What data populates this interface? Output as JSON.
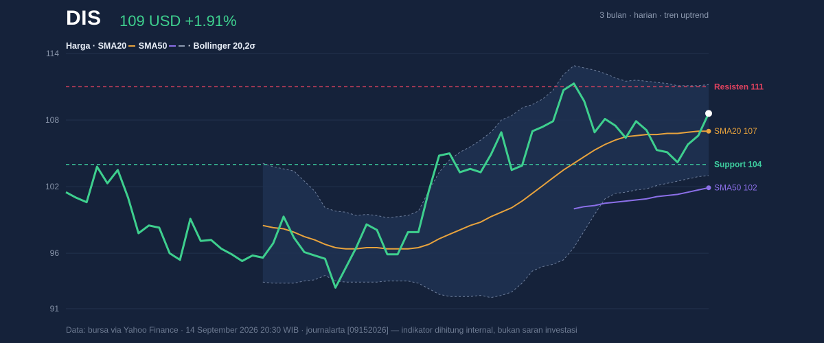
{
  "header": {
    "ticker": "DIS",
    "price_change": "109 USD +1.91%",
    "subtitle": "3 bulan · harian · tren uptrend"
  },
  "legend": {
    "price": "Harga ·",
    "sma20": "SMA20",
    "sma50": "SMA50",
    "bollinger": "· Bollinger 20,2σ"
  },
  "footer": "Data: bursa via Yahoo Finance · 14 September 2026 20:30 WIB · journalarta [09152026] — indikator dihitung internal, bukan saran investasi",
  "colors": {
    "background": "#15223a",
    "price": "#3ecf8e",
    "sma20": "#e8a33d",
    "sma50": "#8b6fe8",
    "resistance": "#e0425f",
    "support": "#3ecfa0",
    "band_fill": "#1e3152",
    "band_line": "#6f7f9c",
    "grid": "#22324d"
  },
  "chart_data": {
    "type": "line",
    "ylim": [
      91,
      114
    ],
    "yticks": [
      91,
      96,
      102,
      108,
      114
    ],
    "grid": true,
    "x": [
      1,
      2,
      3,
      4,
      5,
      6,
      7,
      8,
      9,
      10,
      11,
      12,
      13,
      14,
      15,
      16,
      17,
      18,
      19,
      20,
      21,
      22,
      23,
      24,
      25,
      26,
      27,
      28,
      29,
      30,
      31,
      32,
      33,
      34,
      35,
      36,
      37,
      38,
      39,
      40,
      41,
      42,
      43,
      44,
      45,
      46,
      47,
      48,
      49,
      50,
      51,
      52,
      53,
      54,
      55,
      56,
      57,
      58,
      59,
      60,
      61,
      62,
      63
    ],
    "price": [
      101.5,
      101.0,
      100.6,
      103.8,
      102.3,
      103.5,
      101.0,
      97.8,
      98.5,
      98.3,
      96.0,
      95.4,
      99.1,
      97.1,
      97.2,
      96.4,
      95.9,
      95.3,
      95.8,
      95.6,
      96.9,
      99.3,
      97.4,
      96.1,
      95.8,
      95.5,
      92.9,
      94.7,
      96.5,
      98.6,
      98.1,
      95.9,
      95.9,
      97.9,
      97.9,
      101.6,
      104.8,
      105.0,
      103.3,
      103.6,
      103.3,
      104.9,
      106.9,
      103.5,
      103.9,
      107.0,
      107.4,
      107.9,
      110.7,
      111.3,
      109.7,
      106.9,
      108.1,
      107.5,
      106.4,
      107.9,
      107.1,
      105.3,
      105.1,
      104.2,
      105.8,
      106.6,
      108.6
    ],
    "sma20": [
      null,
      null,
      null,
      null,
      null,
      null,
      null,
      null,
      null,
      null,
      null,
      null,
      null,
      null,
      null,
      null,
      null,
      null,
      null,
      98.5,
      98.3,
      98.2,
      97.9,
      97.5,
      97.2,
      96.8,
      96.5,
      96.4,
      96.4,
      96.5,
      96.5,
      96.4,
      96.4,
      96.4,
      96.5,
      96.8,
      97.3,
      97.7,
      98.1,
      98.5,
      98.8,
      99.3,
      99.7,
      100.1,
      100.7,
      101.4,
      102.1,
      102.8,
      103.5,
      104.1,
      104.7,
      105.3,
      105.8,
      106.2,
      106.5,
      106.6,
      106.7,
      106.7,
      106.8,
      106.8,
      106.9,
      107.0,
      107.0
    ],
    "sma50": [
      null,
      null,
      null,
      null,
      null,
      null,
      null,
      null,
      null,
      null,
      null,
      null,
      null,
      null,
      null,
      null,
      null,
      null,
      null,
      null,
      null,
      null,
      null,
      null,
      null,
      null,
      null,
      null,
      null,
      null,
      null,
      null,
      null,
      null,
      null,
      null,
      null,
      null,
      null,
      null,
      null,
      null,
      null,
      null,
      null,
      null,
      null,
      null,
      null,
      100.0,
      100.2,
      100.3,
      100.5,
      100.6,
      100.7,
      100.8,
      100.9,
      101.1,
      101.2,
      101.3,
      101.5,
      101.7,
      101.9
    ],
    "boll_upper": [
      null,
      null,
      null,
      null,
      null,
      null,
      null,
      null,
      null,
      null,
      null,
      null,
      null,
      null,
      null,
      null,
      null,
      null,
      null,
      104.1,
      103.8,
      103.6,
      103.4,
      102.5,
      101.6,
      100.1,
      99.8,
      99.7,
      99.4,
      99.5,
      99.4,
      99.2,
      99.3,
      99.4,
      99.8,
      101.6,
      103.3,
      104.4,
      105.1,
      105.6,
      106.2,
      106.9,
      108.0,
      108.4,
      109.1,
      109.4,
      109.9,
      110.7,
      112.1,
      112.9,
      112.7,
      112.5,
      112.2,
      111.8,
      111.5,
      111.6,
      111.5,
      111.4,
      111.3,
      111.1,
      111.1,
      111.1,
      111.2
    ],
    "boll_lower": [
      null,
      null,
      null,
      null,
      null,
      null,
      null,
      null,
      null,
      null,
      null,
      null,
      null,
      null,
      null,
      null,
      null,
      null,
      null,
      93.4,
      93.3,
      93.3,
      93.3,
      93.5,
      93.6,
      94.0,
      93.5,
      93.4,
      93.4,
      93.4,
      93.4,
      93.5,
      93.5,
      93.5,
      93.3,
      92.8,
      92.3,
      92.1,
      92.1,
      92.1,
      92.2,
      92.0,
      92.2,
      92.5,
      93.3,
      94.4,
      94.8,
      95.0,
      95.4,
      96.5,
      98.0,
      99.5,
      100.9,
      101.4,
      101.5,
      101.7,
      101.8,
      102.1,
      102.3,
      102.5,
      102.7,
      102.9,
      103.0
    ],
    "resistance": 111,
    "support": 104,
    "annotations": {
      "resistance_label": "Resisten 111",
      "support_label": "Support 104",
      "sma20_label": "SMA20 107",
      "sma50_label": "SMA50 102"
    }
  }
}
